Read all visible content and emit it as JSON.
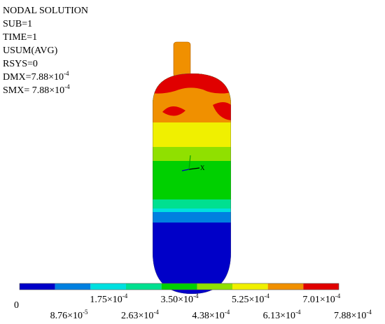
{
  "header": {
    "lines": [
      {
        "text": "NODAL SOLUTION"
      },
      {
        "text": "SUB=1"
      },
      {
        "text": "TIME=1"
      },
      {
        "text": "USUM(AVG)"
      },
      {
        "text": "RSYS=0"
      },
      {
        "text": "DMX=7.88×10",
        "exp": "-4"
      },
      {
        "text": "SMX= 7.88×10",
        "exp": "-4"
      }
    ]
  },
  "legend": {
    "colors": [
      "#0000c8",
      "#0080e0",
      "#00e0e0",
      "#00e090",
      "#00d000",
      "#90e000",
      "#f0f000",
      "#f09000",
      "#e00000"
    ],
    "labels": [
      {
        "text": "0",
        "row": "top"
      },
      {
        "text": "8.76×10",
        "exp": "-5",
        "row": "bottom"
      },
      {
        "text": "1.75×10",
        "exp": "-4",
        "row": "top"
      },
      {
        "text": "2.63×10",
        "exp": "-4",
        "row": "bottom"
      },
      {
        "text": "3.50×10",
        "exp": "-4",
        "row": "top"
      },
      {
        "text": "4.38×10",
        "exp": "-4",
        "row": "bottom"
      },
      {
        "text": "5.25×10",
        "exp": "-4",
        "row": "top"
      },
      {
        "text": "6.13×10",
        "exp": "-4",
        "row": "bottom"
      },
      {
        "text": "7.01×10",
        "exp": "-4",
        "row": "top"
      },
      {
        "text": "7.88×10",
        "exp": "-4",
        "row": "bottom"
      }
    ]
  }
}
